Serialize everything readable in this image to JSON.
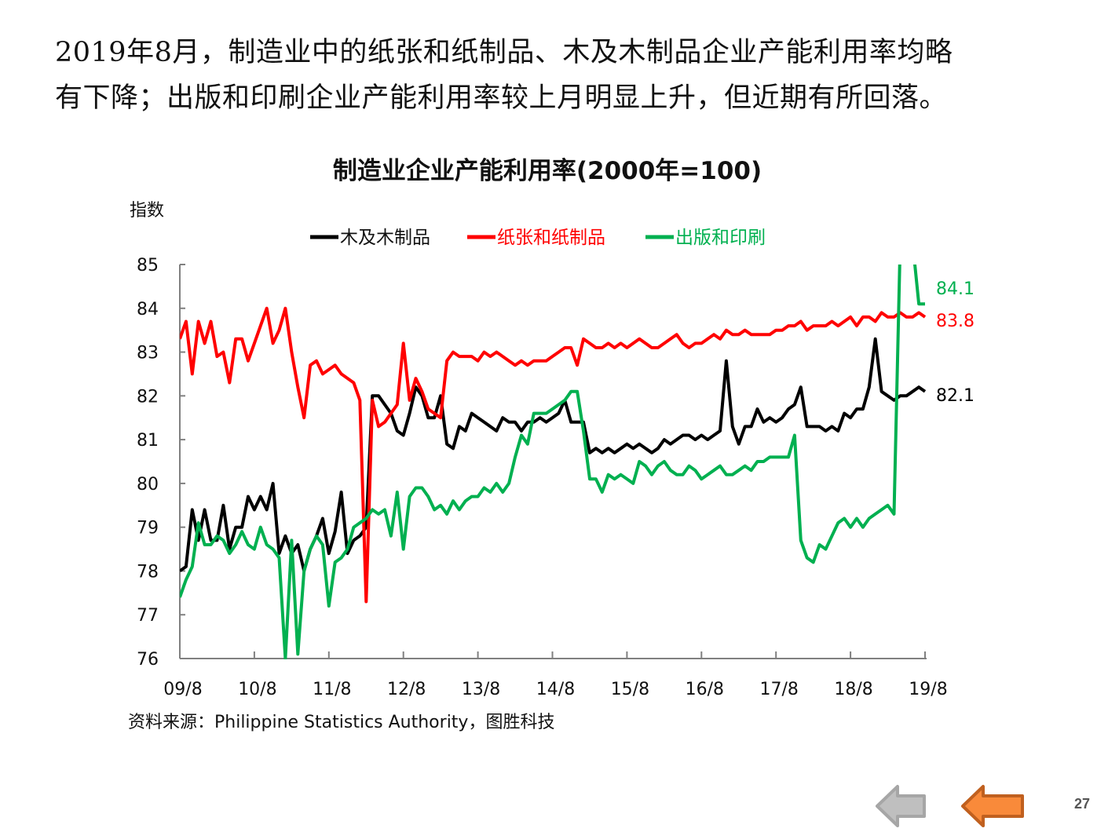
{
  "slide": {
    "heading_line1": "2019年8月，制造业中的纸张和纸制品、木及木制品企业产能利用率均略",
    "heading_line2": "有下降；出版和印刷企业产能利用率较上月明显上升，但近期有所回落。",
    "source": "资料来源：Philippine Statistics Authority，图胜科技",
    "page_number": "27",
    "nav": {
      "prev_icon": "arrow-left-gray",
      "back_icon": "arrow-left-orange"
    }
  },
  "chart_data": {
    "type": "line",
    "title": "制造业企业产能利用率(2000年=100)",
    "ylabel": "指数",
    "xlabel": "",
    "ylim": [
      76,
      85
    ],
    "yticks": [
      "76",
      "77",
      "78",
      "79",
      "80",
      "81",
      "82",
      "83",
      "84",
      "85"
    ],
    "xticks": [
      "09/8",
      "10/8",
      "11/8",
      "12/8",
      "13/8",
      "14/8",
      "15/8",
      "16/8",
      "17/8",
      "18/8",
      "19/8"
    ],
    "x_start": "2009-08",
    "x_end": "2019-08",
    "frequency": "monthly",
    "legend_position": "top",
    "grid": false,
    "series": [
      {
        "name": "木及木制品",
        "color": "#000000",
        "end_label": "82.1",
        "values": [
          78.0,
          78.1,
          79.4,
          78.7,
          79.4,
          78.7,
          78.7,
          79.5,
          78.5,
          79.0,
          79.0,
          79.7,
          79.4,
          79.7,
          79.4,
          80.0,
          78.4,
          78.8,
          78.4,
          78.6,
          78.0,
          78.5,
          78.8,
          79.2,
          78.4,
          78.9,
          79.8,
          78.4,
          78.7,
          78.8,
          79.0,
          82.0,
          82.0,
          81.8,
          81.6,
          81.2,
          81.1,
          81.6,
          82.2,
          82.0,
          81.5,
          81.5,
          82.0,
          80.9,
          80.8,
          81.3,
          81.2,
          81.6,
          81.5,
          81.4,
          81.3,
          81.2,
          81.5,
          81.4,
          81.4,
          81.2,
          81.4,
          81.4,
          81.5,
          81.4,
          81.5,
          81.6,
          81.9,
          81.4,
          81.4,
          81.4,
          80.7,
          80.8,
          80.7,
          80.8,
          80.7,
          80.8,
          80.9,
          80.8,
          80.9,
          80.8,
          80.7,
          80.8,
          81.0,
          80.9,
          81.0,
          81.1,
          81.1,
          81.0,
          81.1,
          81.0,
          81.1,
          81.2,
          82.8,
          81.3,
          80.9,
          81.3,
          81.3,
          81.7,
          81.4,
          81.5,
          81.4,
          81.5,
          81.7,
          81.8,
          82.2,
          81.3,
          81.3,
          81.3,
          81.2,
          81.3,
          81.2,
          81.6,
          81.5,
          81.7,
          81.7,
          82.2,
          83.3,
          82.1,
          82.0,
          81.9,
          82.0,
          82.0,
          82.1,
          82.2,
          82.1
        ]
      },
      {
        "name": "纸张和纸制品",
        "color": "#ff0000",
        "end_label": "83.8",
        "values": [
          83.3,
          83.7,
          82.5,
          83.7,
          83.2,
          83.7,
          82.9,
          83.0,
          82.3,
          83.3,
          83.3,
          82.8,
          83.2,
          83.6,
          84.0,
          83.2,
          83.5,
          84.0,
          83.0,
          82.2,
          81.5,
          82.7,
          82.8,
          82.5,
          82.6,
          82.7,
          82.5,
          82.4,
          82.3,
          81.9,
          77.3,
          81.9,
          81.3,
          81.4,
          81.6,
          81.8,
          83.2,
          81.9,
          82.4,
          82.1,
          81.7,
          81.6,
          81.5,
          82.8,
          83.0,
          82.9,
          82.9,
          82.9,
          82.8,
          83.0,
          82.9,
          83.0,
          82.9,
          82.8,
          82.7,
          82.8,
          82.7,
          82.8,
          82.8,
          82.8,
          82.9,
          83.0,
          83.1,
          83.1,
          82.7,
          83.3,
          83.2,
          83.1,
          83.1,
          83.2,
          83.1,
          83.2,
          83.1,
          83.2,
          83.3,
          83.2,
          83.1,
          83.1,
          83.2,
          83.3,
          83.4,
          83.2,
          83.1,
          83.2,
          83.2,
          83.3,
          83.4,
          83.3,
          83.5,
          83.4,
          83.4,
          83.5,
          83.4,
          83.4,
          83.4,
          83.4,
          83.5,
          83.5,
          83.6,
          83.6,
          83.7,
          83.5,
          83.6,
          83.6,
          83.6,
          83.7,
          83.6,
          83.7,
          83.8,
          83.6,
          83.8,
          83.8,
          83.7,
          83.9,
          83.8,
          83.8,
          83.9,
          83.8,
          83.8,
          83.9,
          83.8
        ]
      },
      {
        "name": "出版和印刷",
        "color": "#00b050",
        "end_label": "84.1",
        "values": [
          77.4,
          77.8,
          78.1,
          79.1,
          78.6,
          78.6,
          78.8,
          78.7,
          78.4,
          78.6,
          78.9,
          78.6,
          78.5,
          79.0,
          78.6,
          78.5,
          78.3,
          76.0,
          78.7,
          76.1,
          78.0,
          78.5,
          78.8,
          78.6,
          77.2,
          78.2,
          78.3,
          78.5,
          79.0,
          79.1,
          79.2,
          79.4,
          79.3,
          79.4,
          78.8,
          79.8,
          78.5,
          79.7,
          79.9,
          79.9,
          79.7,
          79.4,
          79.5,
          79.3,
          79.6,
          79.4,
          79.6,
          79.7,
          79.7,
          79.9,
          79.8,
          80.0,
          79.8,
          80.0,
          80.6,
          81.1,
          80.9,
          81.6,
          81.6,
          81.6,
          81.7,
          81.8,
          81.9,
          82.1,
          82.1,
          81.2,
          80.1,
          80.1,
          79.8,
          80.2,
          80.1,
          80.2,
          80.1,
          80.0,
          80.5,
          80.4,
          80.2,
          80.4,
          80.5,
          80.3,
          80.2,
          80.2,
          80.4,
          80.3,
          80.1,
          80.2,
          80.3,
          80.4,
          80.2,
          80.2,
          80.3,
          80.4,
          80.3,
          80.5,
          80.5,
          80.6,
          80.6,
          80.6,
          80.6,
          81.1,
          78.7,
          78.3,
          78.2,
          78.6,
          78.5,
          78.8,
          79.1,
          79.2,
          79.0,
          79.2,
          79.0,
          79.2,
          79.3,
          79.4,
          79.5,
          79.3,
          85.5,
          85.5,
          85.5,
          84.1,
          84.1
        ]
      }
    ]
  }
}
